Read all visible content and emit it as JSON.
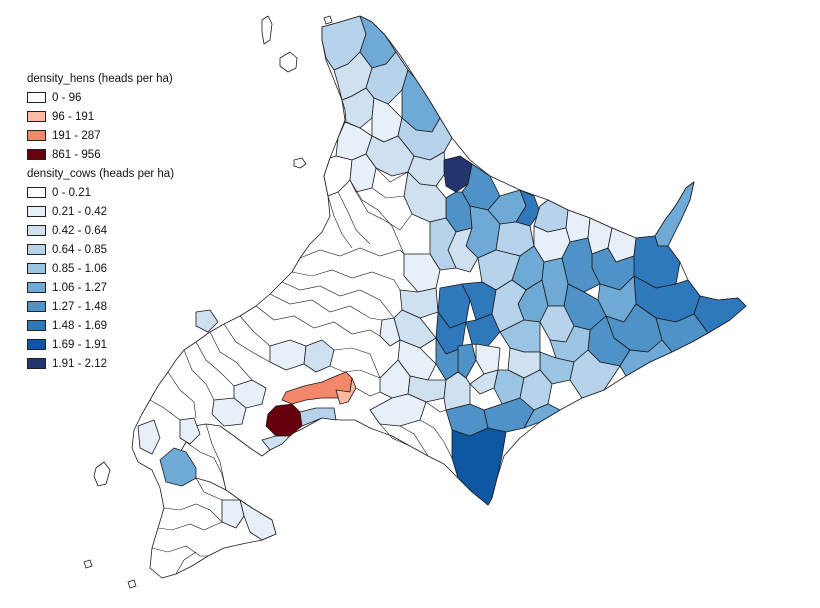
{
  "map": {
    "colors": {
      "land_default": "#ffffff",
      "cows_light": "#e6eef8",
      "cows_mid": "#cbdcef",
      "cows_mid2": "#a7c8e6",
      "cows_med": "#7aaed8",
      "cows_strong": "#4a92c9",
      "cows_strong2": "#2f7bbf",
      "cows_dark": "#1f66b0",
      "cows_darker": "#0c4f9e",
      "cows_darkest": "#23336d",
      "hens_salmon": "#f38b6c",
      "hens_light": "#fcb8a0",
      "hens_dark": "#6b0a10"
    }
  },
  "legend": {
    "hens": {
      "title": "density_hens (heads per ha)",
      "items": [
        {
          "label": "0 - 96",
          "color": "#ffffff"
        },
        {
          "label": "96 - 191",
          "color": "#fcbba1"
        },
        {
          "label": "191 - 287",
          "color": "#f4876a"
        },
        {
          "label": "861 - 956",
          "color": "#67000d"
        }
      ]
    },
    "cows": {
      "title": "density_cows (heads per ha)",
      "items": [
        {
          "label": "0 - 0.21",
          "color": "#ffffff"
        },
        {
          "label": "0.21 - 0.42",
          "color": "#e7f0f8"
        },
        {
          "label": "0.42 - 0.64",
          "color": "#cfe0f1"
        },
        {
          "label": "0.64 - 0.85",
          "color": "#b6d3eb"
        },
        {
          "label": "0.85 - 1.06",
          "color": "#9ac4e3"
        },
        {
          "label": "1.06 - 1.27",
          "color": "#6fa9d6"
        },
        {
          "label": "1.27 - 1.48",
          "color": "#4e92c7"
        },
        {
          "label": "1.48 - 1.69",
          "color": "#2f78bb"
        },
        {
          "label": "1.69 - 1.91",
          "color": "#0f56a3"
        },
        {
          "label": "1.91 - 2.12",
          "color": "#22356f"
        }
      ]
    }
  }
}
